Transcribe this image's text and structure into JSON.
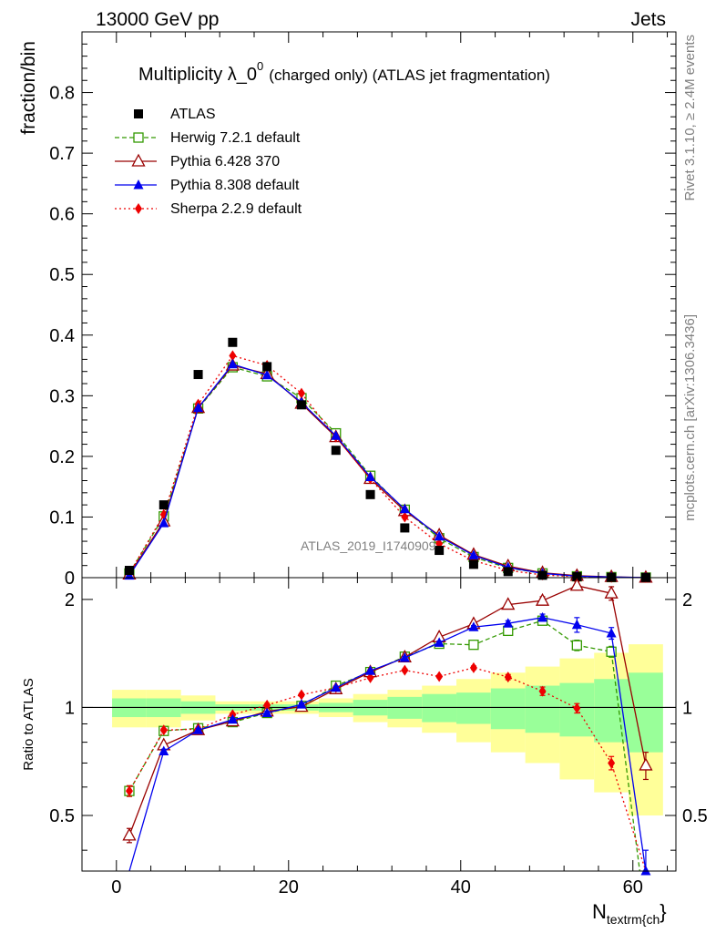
{
  "header": {
    "left": "13000 GeV pp",
    "right": "Jets"
  },
  "side_labels": {
    "rivet": "Rivet 3.1.10, ≥ 2.4M events",
    "mcplots": "mcplots.cern.ch [arXiv:1306.3436]"
  },
  "watermark": "ATLAS_2019_I1740909",
  "colors": {
    "ATLAS": "#000000",
    "Herwig": "#339900",
    "Pythia6": "#990000",
    "Pythia8": "#0000ee",
    "Sherpa": "#ee0000",
    "band_inner": "#99ff99",
    "band_outer": "#ffff99"
  },
  "chart_data": [
    {
      "type": "line",
      "title": "Multiplicity λ_0⁰ (charged only) (ATLAS jet fragmentation)",
      "title_main": "Multiplicity λ_0",
      "title_sup": "0",
      "title_rest": "(charged only) (ATLAS jet fragmentation)",
      "ylabel": "fraction/bin",
      "xlim": [
        -4,
        65
      ],
      "ylim": [
        0,
        0.9
      ],
      "yticks": [
        0,
        0.1,
        0.2,
        0.3,
        0.4,
        0.5,
        0.6,
        0.7,
        0.8
      ],
      "ytick_labels": [
        "0",
        "0.1",
        "0.2",
        "0.3",
        "0.4",
        "0.5",
        "0.6",
        "0.7",
        "0.8"
      ],
      "legend_position": "top-left",
      "x": [
        1.5,
        5.5,
        9.5,
        13.5,
        17.5,
        21.5,
        25.5,
        29.5,
        33.5,
        37.5,
        41.5,
        45.5,
        49.5,
        53.5,
        57.5,
        61.5
      ],
      "series": [
        {
          "name": "ATLAS",
          "marker": "square-filled",
          "line": "none",
          "values": [
            0.012,
            0.12,
            0.335,
            0.388,
            0.348,
            0.285,
            0.21,
            0.137,
            0.082,
            0.045,
            0.022,
            0.01,
            0.004,
            0.0015,
            0.0006,
            0.0003
          ]
        },
        {
          "name": "Herwig 7.2.1 default",
          "marker": "square-open",
          "line": "dashed",
          "values": [
            0.007,
            0.101,
            0.279,
            0.347,
            0.332,
            0.296,
            0.238,
            0.168,
            0.112,
            0.065,
            0.034,
            0.016,
            0.007,
            0.0022,
            0.0009,
            0.0002
          ]
        },
        {
          "name": "Pythia 6.428 370",
          "marker": "triangle-open",
          "line": "solid",
          "values": [
            0.0055,
            0.093,
            0.28,
            0.35,
            0.336,
            0.287,
            0.232,
            0.163,
            0.11,
            0.07,
            0.038,
            0.019,
            0.008,
            0.0033,
            0.0013,
            0.0002
          ]
        },
        {
          "name": "Pythia 8.308 default",
          "marker": "triangle-filled",
          "line": "solid",
          "values": [
            0.0035,
            0.09,
            0.28,
            0.352,
            0.334,
            0.289,
            0.234,
            0.166,
            0.113,
            0.068,
            0.037,
            0.017,
            0.0071,
            0.0026,
            0.001,
            0.0001
          ]
        },
        {
          "name": "Sherpa 2.2.9 default",
          "marker": "diamond-filled",
          "line": "dotted",
          "values": [
            0.007,
            0.104,
            0.286,
            0.366,
            0.35,
            0.304,
            0.232,
            0.163,
            0.1,
            0.056,
            0.028,
            0.012,
            0.0045,
            0.0015,
            0.0004,
            0.0001
          ]
        }
      ]
    },
    {
      "type": "line",
      "ylabel": "Ratio to ATLAS",
      "xlabel": "N",
      "xlabel_sub": "textrm{ch",
      "xlabel_tail": "}",
      "xlim": [
        -4,
        65
      ],
      "ylim": [
        0.35,
        2.3
      ],
      "xticks": [
        0,
        20,
        40,
        60
      ],
      "xtick_labels": [
        "0",
        "20",
        "40",
        "60"
      ],
      "yticks": [
        0.5,
        1,
        2
      ],
      "ytick_labels": [
        "0.5",
        "1",
        "2"
      ],
      "reference_line": 1,
      "x": [
        1.5,
        5.5,
        9.5,
        13.5,
        17.5,
        21.5,
        25.5,
        29.5,
        33.5,
        37.5,
        41.5,
        45.5,
        49.5,
        53.5,
        57.5,
        61.5
      ],
      "band_inner_halfwidth": [
        0.06,
        0.06,
        0.04,
        0.02,
        0.02,
        0.02,
        0.03,
        0.05,
        0.07,
        0.09,
        0.1,
        0.13,
        0.15,
        0.17,
        0.2,
        0.25
      ],
      "band_outer_halfwidth": [
        0.12,
        0.12,
        0.08,
        0.04,
        0.04,
        0.04,
        0.06,
        0.09,
        0.12,
        0.15,
        0.2,
        0.25,
        0.3,
        0.37,
        0.42,
        0.5
      ],
      "series": [
        {
          "name": "Herwig 7.2.1 default",
          "values": [
            0.585,
            0.86,
            0.875,
            0.91,
            0.965,
            1.01,
            1.15,
            1.255,
            1.385,
            1.505,
            1.495,
            1.635,
            1.745,
            1.49,
            1.43,
            null
          ],
          "errors": [
            0.02,
            0.01,
            0.01,
            0.01,
            0.01,
            0.01,
            0.01,
            0.01,
            0.01,
            0.015,
            0.015,
            0.03,
            0.04,
            0.05,
            0.05,
            0
          ]
        },
        {
          "name": "Pythia 6.428 370",
          "values": [
            0.44,
            0.785,
            0.865,
            0.915,
            0.975,
            1.005,
            1.125,
            1.255,
            1.38,
            1.57,
            1.71,
            1.935,
            1.985,
            2.185,
            2.08,
            0.69
          ],
          "errors": [
            0.02,
            0.01,
            0.01,
            0.01,
            0.01,
            0.01,
            0.01,
            0.01,
            0.01,
            0.015,
            0.02,
            0.02,
            0.05,
            0.06,
            0.09,
            0.06
          ]
        },
        {
          "name": "Pythia 8.308 default",
          "values": [
            0.3,
            0.755,
            0.865,
            0.925,
            0.965,
            1.02,
            1.135,
            1.265,
            1.375,
            1.515,
            1.675,
            1.715,
            1.78,
            1.7,
            1.61,
            0.35
          ],
          "errors": [
            0,
            0.01,
            0.01,
            0.01,
            0.01,
            0.01,
            0.01,
            0.01,
            0.01,
            0.015,
            0.015,
            0.03,
            0.04,
            0.08,
            0.06,
            0.05
          ]
        },
        {
          "name": "Sherpa 2.2.9 default",
          "values": [
            0.585,
            0.865,
            0.87,
            0.955,
            1.015,
            1.085,
            1.135,
            1.21,
            1.27,
            1.22,
            1.29,
            1.215,
            1.11,
            0.995,
            0.7,
            0.25
          ],
          "errors": [
            0.02,
            0.01,
            0.01,
            0.01,
            0.01,
            0.01,
            0.01,
            0.01,
            0.01,
            0.01,
            0.015,
            0.02,
            0.03,
            0.03,
            0.03,
            0
          ]
        }
      ]
    }
  ]
}
